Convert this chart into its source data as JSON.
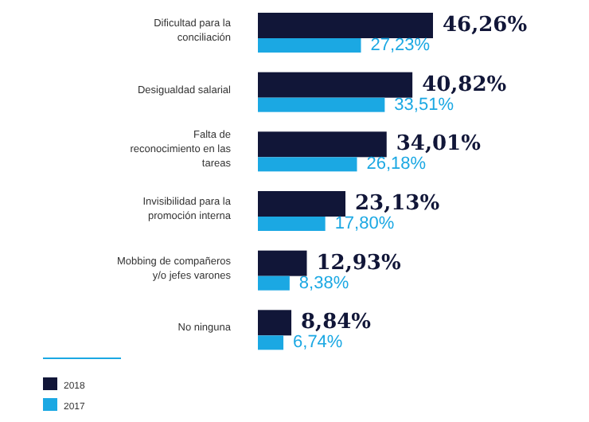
{
  "chart_data": {
    "type": "bar",
    "orientation": "horizontal",
    "categories": [
      "Dificultad para la conciliación",
      "Desigualdad salarial",
      "Falta de reconocimiento en las tareas",
      "Invisibilidad para la promoción interna",
      "Mobbing de compañeros y/o jefes varones",
      "No ninguna"
    ],
    "series": [
      {
        "name": "2018",
        "color": "#111638",
        "values": [
          46.26,
          40.82,
          34.01,
          23.13,
          12.93,
          8.84
        ],
        "value_labels": [
          "46,26%",
          "40,82%",
          "34,01%",
          "23,13%",
          "12,93%",
          "8,84%"
        ]
      },
      {
        "name": "2017",
        "color": "#1ba8e3",
        "values": [
          27.23,
          33.51,
          26.18,
          17.8,
          8.38,
          6.74
        ],
        "value_labels": [
          "27,23%",
          "33,51%",
          "26,18%",
          "17,80%",
          "8,38%",
          "6,74%"
        ]
      }
    ],
    "legend": "bottom left"
  }
}
